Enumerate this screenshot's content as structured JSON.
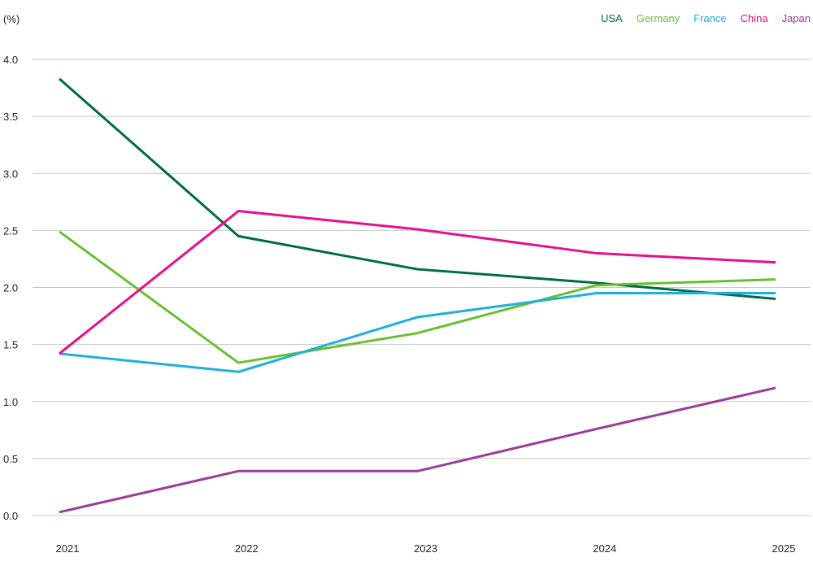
{
  "chart_data": {
    "type": "line",
    "unit_label": "(%)",
    "categories": [
      "2021",
      "2022",
      "2023",
      "2024",
      "2025"
    ],
    "y_ticks": [
      "0.0",
      "0.5",
      "1.0",
      "1.5",
      "2.0",
      "2.5",
      "3.0",
      "3.5",
      "4.0"
    ],
    "ylim": [
      0,
      4
    ],
    "grid": true,
    "legend_position": "top-right",
    "series": [
      {
        "name": "USA",
        "color": "#006b45",
        "values": [
          3.83,
          2.45,
          2.16,
          2.04,
          1.9
        ]
      },
      {
        "name": "Germany",
        "color": "#6abf2e",
        "values": [
          2.49,
          1.34,
          1.6,
          2.02,
          2.07
        ]
      },
      {
        "name": "France",
        "color": "#1eb0d8",
        "values": [
          1.42,
          1.26,
          1.74,
          1.95,
          1.95
        ]
      },
      {
        "name": "China",
        "color": "#e5108a",
        "values": [
          1.42,
          2.67,
          2.51,
          2.3,
          2.22
        ]
      },
      {
        "name": "Japan",
        "color": "#9c3c96",
        "values": [
          0.03,
          0.39,
          0.39,
          0.76,
          1.12
        ]
      }
    ]
  }
}
